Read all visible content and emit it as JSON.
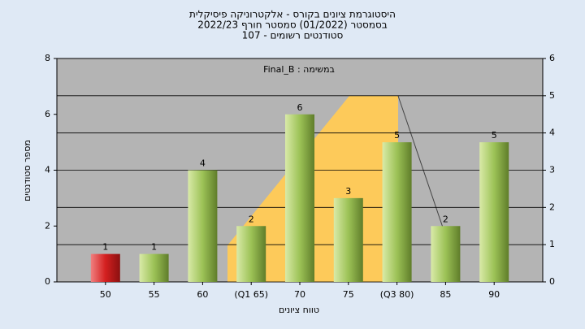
{
  "chart_data": {
    "type": "bar",
    "title": [
      "היסטוגרמת ציונים בקורס - אלקטרוניקה פיסיקלית",
      "בסמסטר  (01/2022)  סמסטר חורף 2022/23",
      "סטודנטים רשומים - 107"
    ],
    "annotation": "Final_B : במשימה",
    "xlabel": "טווח ציונים",
    "ylabel": "מספר סטודנטים",
    "categories": [
      "50",
      "55",
      "60",
      "(Q1 65)",
      "70",
      "75",
      "(Q3 80)",
      "85",
      "90"
    ],
    "values": [
      1,
      1,
      4,
      2,
      6,
      3,
      5,
      2,
      5
    ],
    "colors": [
      "#d42020",
      "#9cc256",
      "#9cc256",
      "#9cc256",
      "#9cc256",
      "#9cc256",
      "#9cc256",
      "#9cc256",
      "#9cc256"
    ],
    "ylim": [
      0,
      8
    ],
    "yticks": [
      0,
      2,
      4,
      6,
      8
    ],
    "y2lim": [
      0,
      6
    ],
    "y2ticks": [
      0,
      1,
      2,
      3,
      4,
      5,
      6
    ],
    "grid": true
  }
}
